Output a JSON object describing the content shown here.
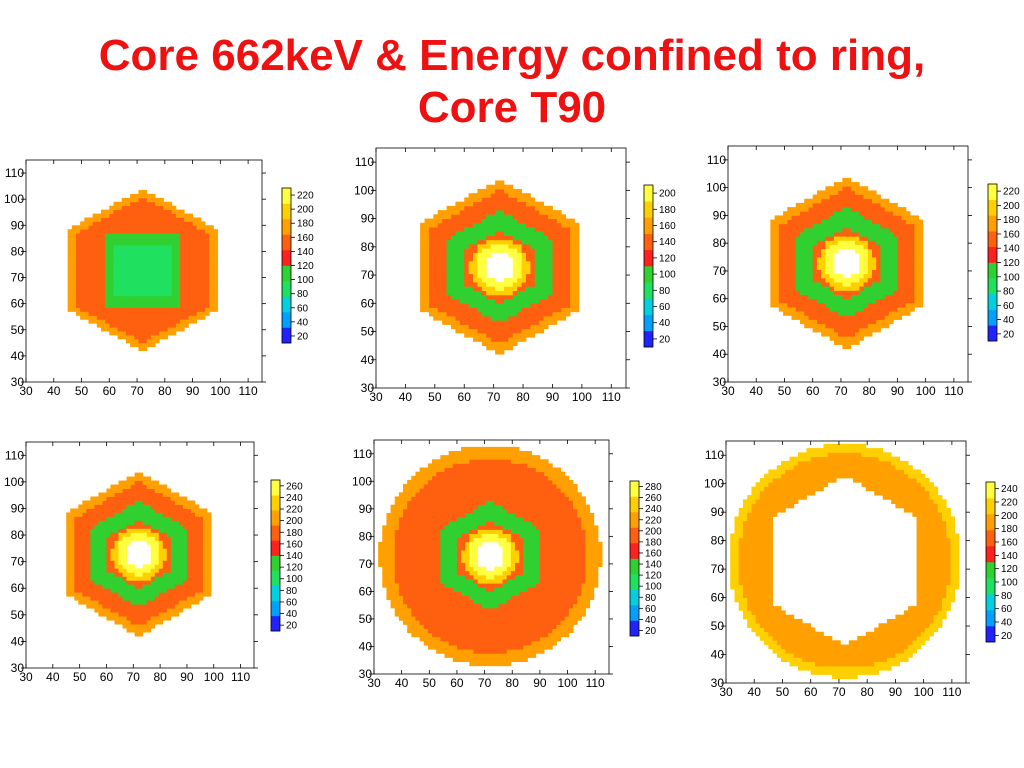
{
  "slide": {
    "title_line1": "Core 662keV & Energy confined to ring,",
    "title_line2": "Core T90"
  },
  "colors": {
    "title": "#ee1111",
    "colormap": [
      "#2222ff",
      "#00a0ff",
      "#00d0e0",
      "#20e060",
      "#30d030",
      "#ff2020",
      "#ff6010",
      "#ffa000",
      "#ffd000",
      "#ffff40"
    ]
  },
  "chart_data": [
    {
      "type": "heatmap",
      "shape": "hexagon",
      "pattern": "filled-core",
      "xlim": [
        30,
        115
      ],
      "ylim": [
        30,
        115
      ],
      "xticks": [
        "30",
        "40",
        "50",
        "60",
        "70",
        "80",
        "90",
        "100",
        "110"
      ],
      "yticks": [
        "30",
        "40",
        "50",
        "60",
        "70",
        "80",
        "90",
        "100",
        "110"
      ],
      "colorbar": {
        "ticks": [
          "20",
          "40",
          "60",
          "80",
          "100",
          "120",
          "140",
          "160",
          "180",
          "200",
          "220"
        ],
        "range": [
          10,
          230
        ]
      }
    },
    {
      "type": "heatmap",
      "shape": "hexagon",
      "pattern": "ring-with-hot-core",
      "xlim": [
        30,
        115
      ],
      "ylim": [
        30,
        115
      ],
      "xticks": [
        "30",
        "40",
        "50",
        "60",
        "70",
        "80",
        "90",
        "100",
        "110"
      ],
      "yticks": [
        "30",
        "40",
        "50",
        "60",
        "70",
        "80",
        "90",
        "100",
        "110"
      ],
      "colorbar": {
        "ticks": [
          "20",
          "40",
          "60",
          "80",
          "100",
          "120",
          "140",
          "160",
          "180",
          "200"
        ],
        "range": [
          10,
          210
        ]
      }
    },
    {
      "type": "heatmap",
      "shape": "hexagon",
      "pattern": "ring-with-hot-core",
      "xlim": [
        30,
        115
      ],
      "ylim": [
        30,
        115
      ],
      "xticks": [
        "30",
        "40",
        "50",
        "60",
        "70",
        "80",
        "90",
        "100",
        "110"
      ],
      "yticks": [
        "30",
        "40",
        "50",
        "60",
        "70",
        "80",
        "90",
        "100",
        "110"
      ],
      "colorbar": {
        "ticks": [
          "20",
          "40",
          "60",
          "80",
          "100",
          "120",
          "140",
          "160",
          "180",
          "200",
          "220"
        ],
        "range": [
          10,
          230
        ]
      }
    },
    {
      "type": "heatmap",
      "shape": "hexagon",
      "pattern": "ring-with-hot-core",
      "xlim": [
        30,
        115
      ],
      "ylim": [
        30,
        115
      ],
      "xticks": [
        "30",
        "40",
        "50",
        "60",
        "70",
        "80",
        "90",
        "100",
        "110"
      ],
      "yticks": [
        "30",
        "40",
        "50",
        "60",
        "70",
        "80",
        "90",
        "100",
        "110"
      ],
      "colorbar": {
        "ticks": [
          "20",
          "40",
          "60",
          "80",
          "100",
          "120",
          "140",
          "160",
          "180",
          "200",
          "220",
          "240",
          "260"
        ],
        "range": [
          10,
          270
        ]
      }
    },
    {
      "type": "heatmap",
      "shape": "circle",
      "pattern": "ring-with-hot-core",
      "xlim": [
        30,
        115
      ],
      "ylim": [
        30,
        115
      ],
      "xticks": [
        "30",
        "40",
        "50",
        "60",
        "70",
        "80",
        "90",
        "100",
        "110"
      ],
      "yticks": [
        "30",
        "40",
        "50",
        "60",
        "70",
        "80",
        "90",
        "100",
        "110"
      ],
      "colorbar": {
        "ticks": [
          "20",
          "40",
          "60",
          "80",
          "100",
          "120",
          "140",
          "160",
          "180",
          "200",
          "220",
          "240",
          "260",
          "280"
        ],
        "range": [
          10,
          290
        ]
      }
    },
    {
      "type": "heatmap",
      "shape": "annulus",
      "pattern": "outer-ring-only",
      "xlim": [
        30,
        115
      ],
      "ylim": [
        30,
        115
      ],
      "xticks": [
        "30",
        "40",
        "50",
        "60",
        "70",
        "80",
        "90",
        "100",
        "110"
      ],
      "yticks": [
        "30",
        "40",
        "50",
        "60",
        "70",
        "80",
        "90",
        "100",
        "110"
      ],
      "colorbar": {
        "ticks": [
          "20",
          "40",
          "60",
          "80",
          "100",
          "120",
          "140",
          "160",
          "180",
          "200",
          "220",
          "240"
        ],
        "range": [
          10,
          250
        ]
      }
    }
  ]
}
